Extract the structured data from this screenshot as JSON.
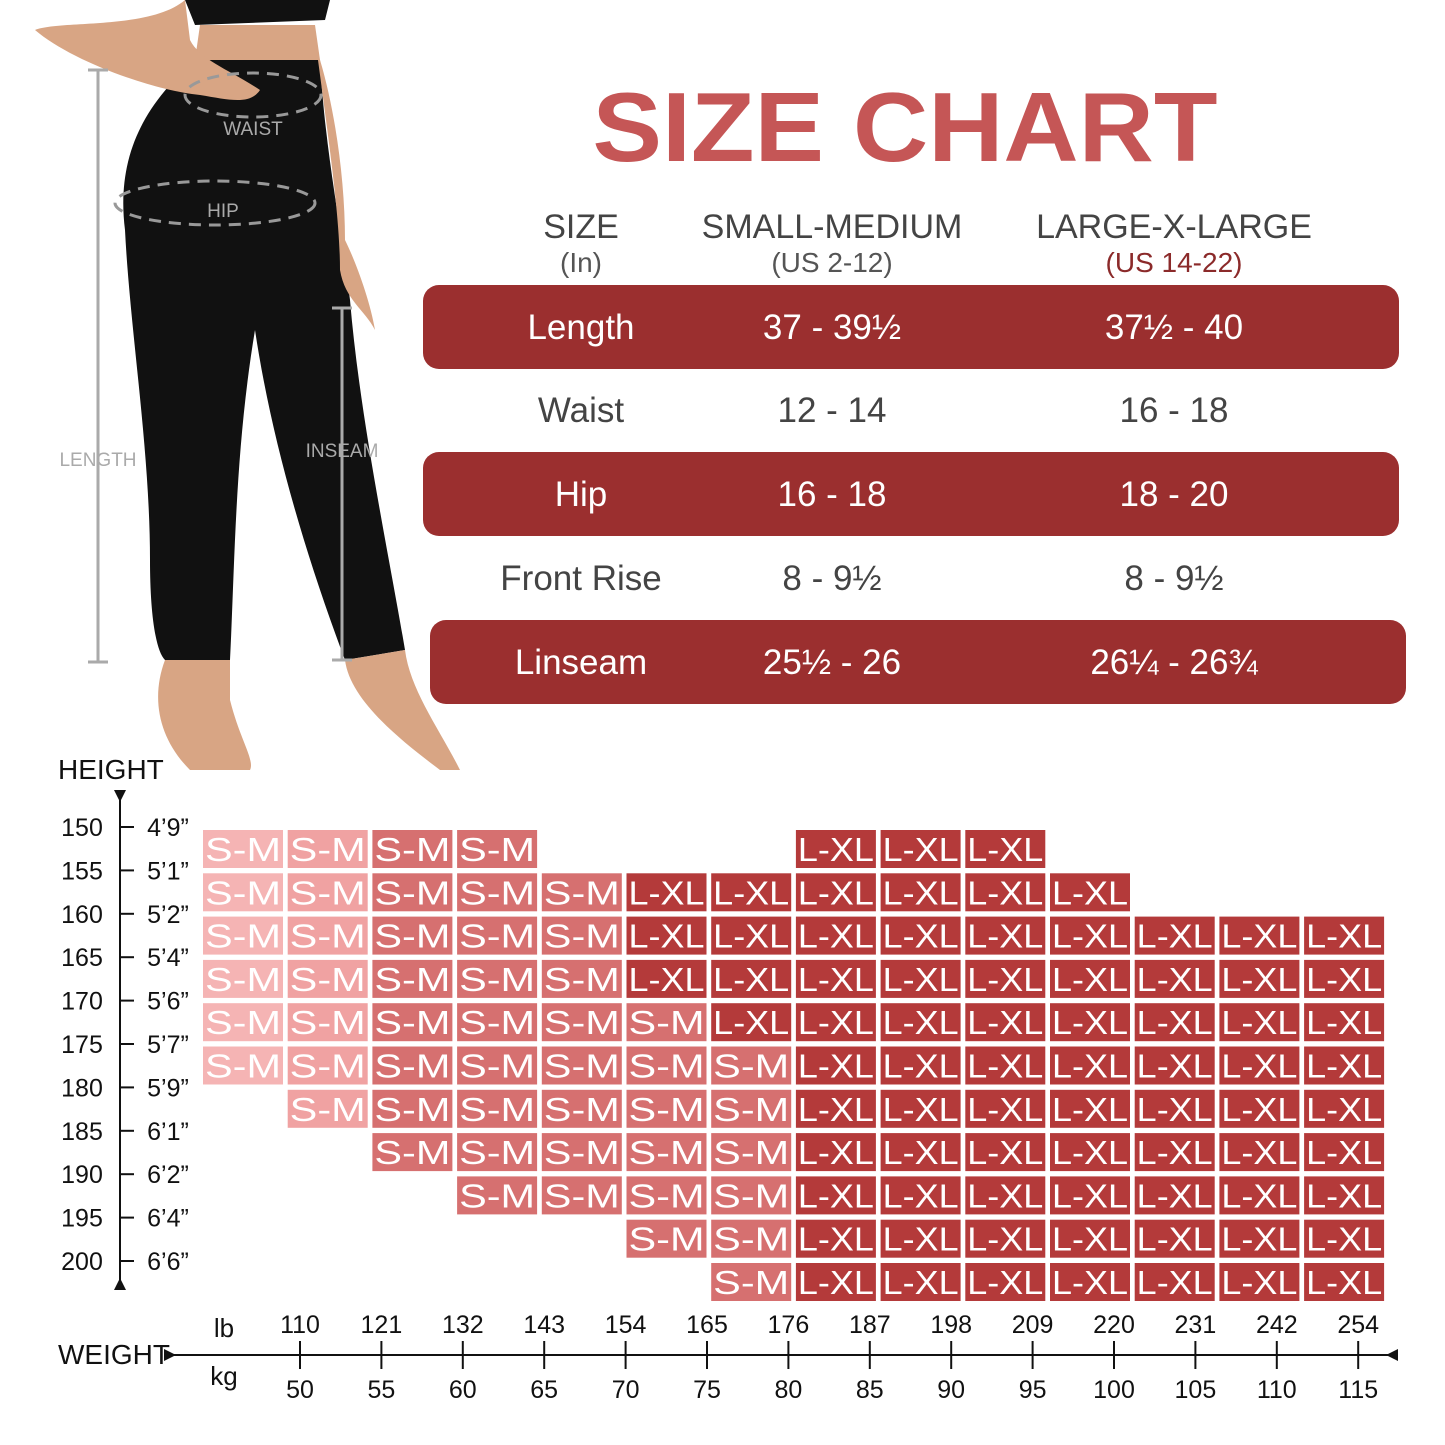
{
  "title": "SIZE CHART",
  "figure_labels": {
    "waist": "WAIST",
    "hip": "HIP",
    "length": "LENGTH",
    "inseam": "INSEAM"
  },
  "table": {
    "header": [
      {
        "label": "SIZE",
        "sub": "(In)"
      },
      {
        "label": "SMALL-MEDIUM",
        "sub": "(US 2-12)"
      },
      {
        "label": "LARGE-X-LARGE",
        "sub": "(US 14-22)"
      }
    ],
    "rows": [
      [
        "Length",
        "37 - 39½",
        "37½ - 40"
      ],
      [
        "Waist",
        "12 - 14",
        "16 - 18"
      ],
      [
        "Hip",
        "16 - 18",
        "18 - 20"
      ],
      [
        "Front Rise",
        "8 - 9½",
        "8 - 9½"
      ],
      [
        "Linseam",
        "25½ - 26",
        "26¼ - 26¾"
      ]
    ]
  },
  "grid": {
    "height_title": "HEIGHT",
    "weight_title": "WEIGHT",
    "lb_unit": "lb",
    "kg_unit": "kg",
    "heights": [
      {
        "cm": 150,
        "ft": "4’9”"
      },
      {
        "cm": 155,
        "ft": "5’1”"
      },
      {
        "cm": 160,
        "ft": "5’2”"
      },
      {
        "cm": 165,
        "ft": "5’4”"
      },
      {
        "cm": 170,
        "ft": "5’6”"
      },
      {
        "cm": 175,
        "ft": "5’7”"
      },
      {
        "cm": 180,
        "ft": "5’9”"
      },
      {
        "cm": 185,
        "ft": "6’1”"
      },
      {
        "cm": 190,
        "ft": "6’2”"
      },
      {
        "cm": 195,
        "ft": "6’4”"
      },
      {
        "cm": 200,
        "ft": "6’6”"
      }
    ],
    "weights": [
      {
        "lb": 110,
        "kg": 50
      },
      {
        "lb": 121,
        "kg": 55
      },
      {
        "lb": 132,
        "kg": 60
      },
      {
        "lb": 143,
        "kg": 65
      },
      {
        "lb": 154,
        "kg": 70
      },
      {
        "lb": 165,
        "kg": 75
      },
      {
        "lb": 176,
        "kg": 80
      },
      {
        "lb": 187,
        "kg": 85
      },
      {
        "lb": 198,
        "kg": 90
      },
      {
        "lb": 209,
        "kg": 95
      },
      {
        "lb": 220,
        "kg": 100
      },
      {
        "lb": 231,
        "kg": 105
      },
      {
        "lb": 242,
        "kg": 110
      },
      {
        "lb": 254,
        "kg": 115
      }
    ],
    "cells": [
      [
        "S-M",
        "S-M",
        "S-M",
        "S-M",
        null,
        null,
        null,
        "L-XL",
        "L-XL",
        "L-XL",
        null,
        null,
        null,
        null
      ],
      [
        "S-M",
        "S-M",
        "S-M",
        "S-M",
        "S-M",
        "L-XL",
        "L-XL",
        "L-XL",
        "L-XL",
        "L-XL",
        "L-XL",
        null,
        null,
        null
      ],
      [
        "S-M",
        "S-M",
        "S-M",
        "S-M",
        "S-M",
        "L-XL",
        "L-XL",
        "L-XL",
        "L-XL",
        "L-XL",
        "L-XL",
        "L-XL",
        "L-XL",
        "L-XL"
      ],
      [
        "S-M",
        "S-M",
        "S-M",
        "S-M",
        "S-M",
        "L-XL",
        "L-XL",
        "L-XL",
        "L-XL",
        "L-XL",
        "L-XL",
        "L-XL",
        "L-XL",
        "L-XL"
      ],
      [
        "S-M",
        "S-M",
        "S-M",
        "S-M",
        "S-M",
        "S-M",
        "L-XL",
        "L-XL",
        "L-XL",
        "L-XL",
        "L-XL",
        "L-XL",
        "L-XL",
        "L-XL"
      ],
      [
        "S-M",
        "S-M",
        "S-M",
        "S-M",
        "S-M",
        "S-M",
        "S-M",
        "L-XL",
        "L-XL",
        "L-XL",
        "L-XL",
        "L-XL",
        "L-XL",
        "L-XL"
      ],
      [
        null,
        "S-M",
        "S-M",
        "S-M",
        "S-M",
        "S-M",
        "S-M",
        "L-XL",
        "L-XL",
        "L-XL",
        "L-XL",
        "L-XL",
        "L-XL",
        "L-XL"
      ],
      [
        null,
        null,
        "S-M",
        "S-M",
        "S-M",
        "S-M",
        "S-M",
        "L-XL",
        "L-XL",
        "L-XL",
        "L-XL",
        "L-XL",
        "L-XL",
        "L-XL"
      ],
      [
        null,
        null,
        null,
        "S-M",
        "S-M",
        "S-M",
        "S-M",
        "L-XL",
        "L-XL",
        "L-XL",
        "L-XL",
        "L-XL",
        "L-XL",
        "L-XL"
      ],
      [
        null,
        null,
        null,
        null,
        null,
        "S-M",
        "S-M",
        "L-XL",
        "L-XL",
        "L-XL",
        "L-XL",
        "L-XL",
        "L-XL",
        "L-XL"
      ],
      [
        null,
        null,
        null,
        null,
        null,
        null,
        "S-M",
        "L-XL",
        "L-XL",
        "L-XL",
        "L-XL",
        "L-XL",
        "L-XL",
        "L-XL"
      ]
    ]
  }
}
